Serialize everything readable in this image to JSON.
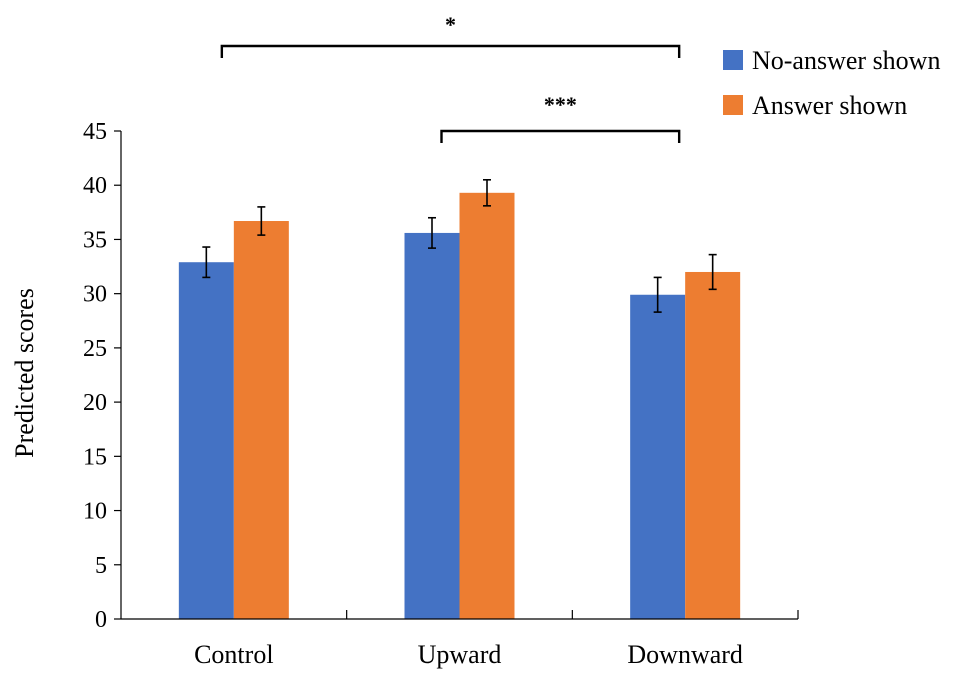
{
  "chart_data": {
    "type": "bar",
    "categories": [
      "Control",
      "Upward",
      "Downward"
    ],
    "series": [
      {
        "name": "No-answer shown",
        "color": "#4472C4",
        "values": [
          32.9,
          35.6,
          29.9
        ],
        "errors": [
          1.4,
          1.4,
          1.6
        ]
      },
      {
        "name": "Answer shown",
        "color": "#ED7D31",
        "values": [
          36.7,
          39.3,
          32.0
        ],
        "errors": [
          1.3,
          1.2,
          1.6
        ]
      }
    ],
    "ylabel": "Predicted scores",
    "xlabel": "",
    "ylim": [
      0,
      45
    ],
    "yticks": [
      0,
      5,
      10,
      15,
      20,
      25,
      30,
      35,
      40,
      45
    ],
    "grid": false,
    "legend": "top-right",
    "significance": [
      {
        "from": "Control",
        "to": "Downward",
        "label": "*"
      },
      {
        "from": "Upward",
        "to": "Downward",
        "label": "***"
      }
    ]
  }
}
